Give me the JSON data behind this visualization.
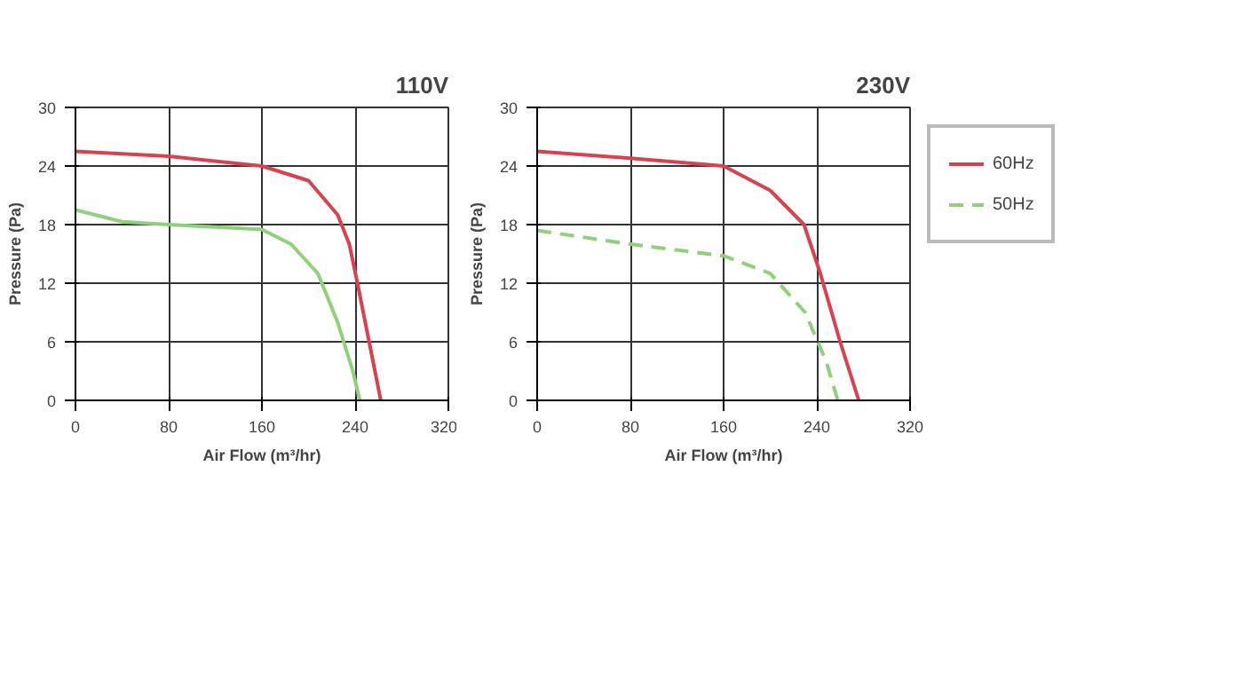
{
  "chart_data": [
    {
      "type": "line",
      "title": "110V",
      "xlabel": "Air Flow (m³/hr)",
      "ylabel": "Pressure (Pa)",
      "xlim": [
        0,
        320
      ],
      "ylim": [
        0,
        30
      ],
      "xticks": [
        0,
        80,
        160,
        240,
        320
      ],
      "yticks": [
        0,
        6,
        12,
        18,
        24,
        30
      ],
      "grid": true,
      "series": [
        {
          "color": "#d9414f",
          "line_style": "solid",
          "x": [
            0,
            80,
            160,
            200,
            225,
            235,
            242,
            252,
            262
          ],
          "values": [
            25.5,
            25,
            24,
            22.5,
            19,
            16,
            12,
            6,
            0
          ]
        },
        {
          "color": "#8fd07a",
          "line_style": "solid",
          "x": [
            0,
            40,
            80,
            160,
            185,
            208,
            225,
            238,
            244
          ],
          "values": [
            19.5,
            18.3,
            18,
            17.5,
            16,
            13,
            8,
            3,
            0
          ]
        }
      ]
    },
    {
      "type": "line",
      "title": "230V",
      "xlabel": "Air Flow (m³/hr)",
      "ylabel": "Pressure (Pa)",
      "xlim": [
        0,
        320
      ],
      "ylim": [
        0,
        30
      ],
      "xticks": [
        0,
        80,
        160,
        240,
        320
      ],
      "yticks": [
        0,
        6,
        12,
        18,
        24,
        30
      ],
      "grid": true,
      "legend": "right",
      "series": [
        {
          "name": "60Hz",
          "color": "#d9414f",
          "line_style": "solid",
          "x": [
            0,
            80,
            160,
            200,
            229,
            243,
            260,
            276
          ],
          "values": [
            25.5,
            24.8,
            24,
            21.5,
            18,
            13,
            6,
            0
          ]
        },
        {
          "name": "50Hz",
          "color": "#8fd07a",
          "line_style": "dashed",
          "x": [
            0,
            80,
            160,
            200,
            230,
            248,
            258
          ],
          "values": [
            17.4,
            16,
            14.8,
            13,
            9,
            4,
            0
          ]
        }
      ]
    }
  ]
}
